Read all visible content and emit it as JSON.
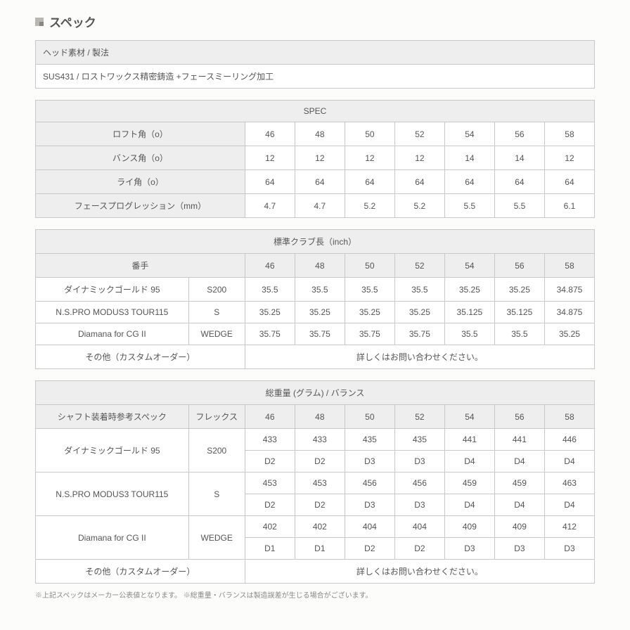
{
  "page_title": "スペック",
  "head_material": {
    "header": "ヘッド素材 / 製法",
    "value": "SUS431 / ロストワックス精密鋳造 +フェースミーリング加工"
  },
  "spec_table": {
    "title": "SPEC",
    "rows": [
      {
        "label": "ロフト角（o）",
        "vals": [
          "46",
          "48",
          "50",
          "52",
          "54",
          "56",
          "58"
        ]
      },
      {
        "label": "バンス角（o）",
        "vals": [
          "12",
          "12",
          "12",
          "12",
          "14",
          "14",
          "12"
        ]
      },
      {
        "label": "ライ角（o）",
        "vals": [
          "64",
          "64",
          "64",
          "64",
          "64",
          "64",
          "64"
        ]
      },
      {
        "label": "フェースプログレッション（mm）",
        "vals": [
          "4.7",
          "4.7",
          "5.2",
          "5.2",
          "5.5",
          "5.5",
          "6.1"
        ]
      }
    ]
  },
  "length_table": {
    "title": "標準クラブ長（inch）",
    "header_label": "番手",
    "header_vals": [
      "46",
      "48",
      "50",
      "52",
      "54",
      "56",
      "58"
    ],
    "rows": [
      {
        "name": "ダイナミックゴールド 95",
        "flex": "S200",
        "vals": [
          "35.5",
          "35.5",
          "35.5",
          "35.5",
          "35.25",
          "35.25",
          "34.875"
        ]
      },
      {
        "name": "N.S.PRO MODUS3 TOUR115",
        "flex": "S",
        "vals": [
          "35.25",
          "35.25",
          "35.25",
          "35.25",
          "35.125",
          "35.125",
          "34.875"
        ]
      },
      {
        "name": "Diamana for CG II",
        "flex": "WEDGE",
        "vals": [
          "35.75",
          "35.75",
          "35.75",
          "35.75",
          "35.5",
          "35.5",
          "35.25"
        ]
      }
    ],
    "other_label": "その他（カスタムオーダー）",
    "other_text": "詳しくはお問い合わせください。"
  },
  "weight_table": {
    "title": "総重量 (グラム) / バランス",
    "col1": "シャフト装着時参考スペック",
    "col2": "フレックス",
    "header_vals": [
      "46",
      "48",
      "50",
      "52",
      "54",
      "56",
      "58"
    ],
    "rows": [
      {
        "name": "ダイナミックゴールド 95",
        "flex": "S200",
        "w": [
          "433",
          "433",
          "435",
          "435",
          "441",
          "441",
          "446"
        ],
        "b": [
          "D2",
          "D2",
          "D3",
          "D3",
          "D4",
          "D4",
          "D4"
        ]
      },
      {
        "name": "N.S.PRO MODUS3 TOUR115",
        "flex": "S",
        "w": [
          "453",
          "453",
          "456",
          "456",
          "459",
          "459",
          "463"
        ],
        "b": [
          "D2",
          "D2",
          "D3",
          "D3",
          "D4",
          "D4",
          "D4"
        ]
      },
      {
        "name": "Diamana for CG II",
        "flex": "WEDGE",
        "w": [
          "402",
          "402",
          "404",
          "404",
          "409",
          "409",
          "412"
        ],
        "b": [
          "D1",
          "D1",
          "D2",
          "D2",
          "D3",
          "D3",
          "D3"
        ]
      }
    ],
    "other_label": "その他（カスタムオーダー）",
    "other_text": "詳しくはお問い合わせください。"
  },
  "footnote": "※上記スペックはメーカー公表値となります。  ※総重量・バランスは製造誤差が生じる場合がございます。"
}
